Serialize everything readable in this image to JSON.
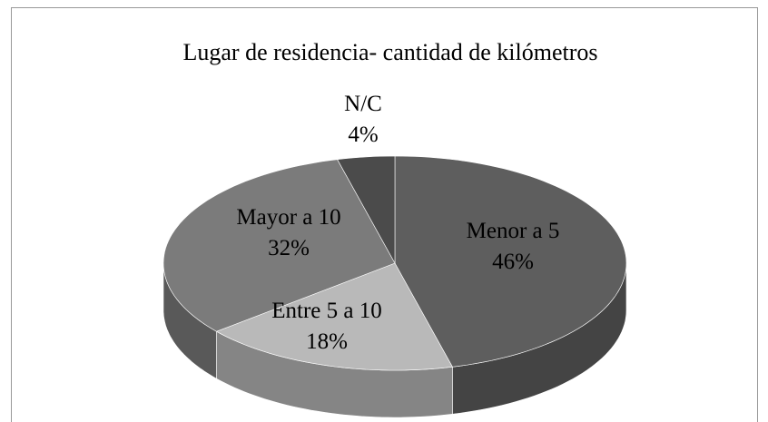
{
  "chart_data": {
    "type": "pie",
    "title": "Lugar de residencia- cantidad de kilómetros",
    "categories": [
      "Menor a 5",
      "Entre 5 a 10",
      "Mayor a 10",
      "N/C"
    ],
    "values": [
      46,
      18,
      32,
      4
    ],
    "value_labels": [
      "46%",
      "18%",
      "32%",
      "4%"
    ],
    "colors": [
      "#5e5e5e",
      "#b9b9b9",
      "#7b7b7b",
      "#4b4b4b"
    ]
  }
}
